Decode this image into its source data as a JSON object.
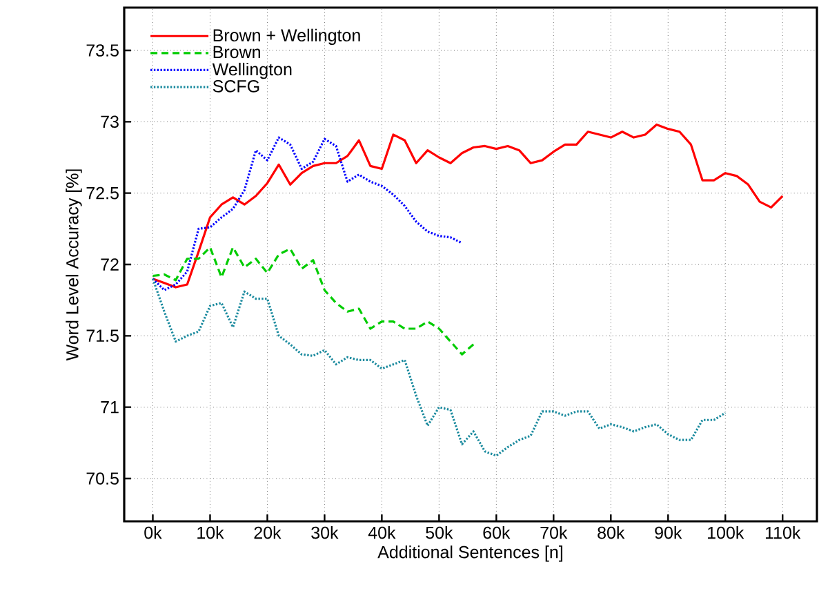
{
  "chart_data": {
    "type": "line",
    "xlabel": "Additional Sentences [n]",
    "ylabel": "Word Level Accuracy [%]",
    "xlim": [
      -5,
      116
    ],
    "ylim": [
      70.2,
      73.8
    ],
    "xticks": [
      {
        "value": 0,
        "label": "0k"
      },
      {
        "value": 10,
        "label": "10k"
      },
      {
        "value": 20,
        "label": "20k"
      },
      {
        "value": 30,
        "label": "30k"
      },
      {
        "value": 40,
        "label": "40k"
      },
      {
        "value": 50,
        "label": "50k"
      },
      {
        "value": 60,
        "label": "60k"
      },
      {
        "value": 70,
        "label": "70k"
      },
      {
        "value": 80,
        "label": "80k"
      },
      {
        "value": 90,
        "label": "90k"
      },
      {
        "value": 100,
        "label": "100k"
      },
      {
        "value": 110,
        "label": "110k"
      }
    ],
    "yticks": [
      70.5,
      71,
      71.5,
      72,
      72.5,
      73,
      73.5
    ],
    "grid": true,
    "legend": "top left",
    "marker": "none",
    "series": [
      {
        "name": "Brown + Wellington",
        "color": "#ff0000",
        "line_style": "solid",
        "x": [
          0,
          2,
          4,
          6,
          8,
          10,
          12,
          14,
          16,
          18,
          20,
          22,
          24,
          26,
          28,
          30,
          32,
          34,
          36,
          38,
          40,
          42,
          44,
          46,
          48,
          50,
          52,
          54,
          56,
          58,
          60,
          62,
          64,
          66,
          68,
          70,
          72,
          74,
          76,
          78,
          80,
          82,
          84,
          86,
          88,
          90,
          92,
          94,
          96,
          98,
          100,
          102,
          104,
          106,
          108,
          110
        ],
        "values": [
          71.9,
          71.87,
          71.84,
          71.86,
          72.09,
          72.33,
          72.42,
          72.47,
          72.42,
          72.48,
          72.57,
          72.7,
          72.56,
          72.64,
          72.69,
          72.71,
          72.71,
          72.76,
          72.87,
          72.69,
          72.67,
          72.91,
          72.87,
          72.71,
          72.8,
          72.75,
          72.71,
          72.78,
          72.82,
          72.83,
          72.81,
          72.83,
          72.8,
          72.71,
          72.73,
          72.79,
          72.84,
          72.84,
          72.93,
          72.91,
          72.89,
          72.93,
          72.89,
          72.91,
          72.98,
          72.95,
          72.93,
          72.84,
          72.59,
          72.59,
          72.64,
          72.62,
          72.56,
          72.44,
          72.4,
          72.48
        ]
      },
      {
        "name": "Brown",
        "color": "#00cc00",
        "line_style": "dashed",
        "x": [
          0,
          2,
          4,
          6,
          8,
          10,
          12,
          14,
          16,
          18,
          20,
          22,
          24,
          26,
          28,
          30,
          32,
          34,
          36,
          38,
          40,
          42,
          44,
          46,
          48,
          50,
          52,
          54,
          56
        ],
        "values": [
          71.92,
          71.93,
          71.89,
          72.04,
          72.04,
          72.12,
          71.91,
          72.12,
          71.98,
          72.04,
          71.94,
          72.07,
          72.11,
          71.97,
          72.03,
          71.82,
          71.73,
          71.67,
          71.69,
          71.55,
          71.6,
          71.6,
          71.55,
          71.55,
          71.6,
          71.55,
          71.46,
          71.37,
          71.44
        ]
      },
      {
        "name": "Wellington",
        "color": "#0000ff",
        "line_style": "dotted",
        "x": [
          0,
          2,
          4,
          6,
          8,
          10,
          12,
          14,
          16,
          18,
          20,
          22,
          24,
          26,
          28,
          30,
          32,
          34,
          36,
          38,
          40,
          42,
          44,
          46,
          48,
          50,
          52,
          54
        ],
        "values": [
          71.9,
          71.82,
          71.86,
          71.95,
          72.25,
          72.26,
          72.33,
          72.39,
          72.52,
          72.8,
          72.73,
          72.89,
          72.84,
          72.67,
          72.72,
          72.88,
          72.83,
          72.58,
          72.63,
          72.58,
          72.55,
          72.49,
          72.41,
          72.3,
          72.23,
          72.2,
          72.19,
          72.15
        ]
      },
      {
        "name": "SCFG",
        "color": "#1a8a9e",
        "line_style": "dotted",
        "x": [
          0,
          2,
          4,
          6,
          8,
          10,
          12,
          14,
          16,
          18,
          20,
          22,
          24,
          26,
          28,
          30,
          32,
          34,
          36,
          38,
          40,
          42,
          44,
          46,
          48,
          50,
          52,
          54,
          56,
          58,
          60,
          62,
          64,
          66,
          68,
          70,
          72,
          74,
          76,
          78,
          80,
          82,
          84,
          86,
          88,
          90,
          92,
          94,
          96,
          98,
          100
        ],
        "values": [
          71.9,
          71.67,
          71.46,
          71.5,
          71.53,
          71.71,
          71.73,
          71.56,
          71.81,
          71.76,
          71.76,
          71.5,
          71.44,
          71.37,
          71.36,
          71.4,
          71.3,
          71.35,
          71.33,
          71.33,
          71.27,
          71.3,
          71.33,
          71.08,
          70.87,
          71.0,
          70.98,
          70.74,
          70.83,
          70.69,
          70.66,
          70.72,
          70.77,
          70.8,
          70.97,
          70.97,
          70.94,
          70.97,
          70.97,
          70.85,
          70.88,
          70.86,
          70.83,
          70.86,
          70.88,
          70.81,
          70.77,
          70.77,
          70.91,
          70.91,
          70.96
        ]
      }
    ]
  }
}
